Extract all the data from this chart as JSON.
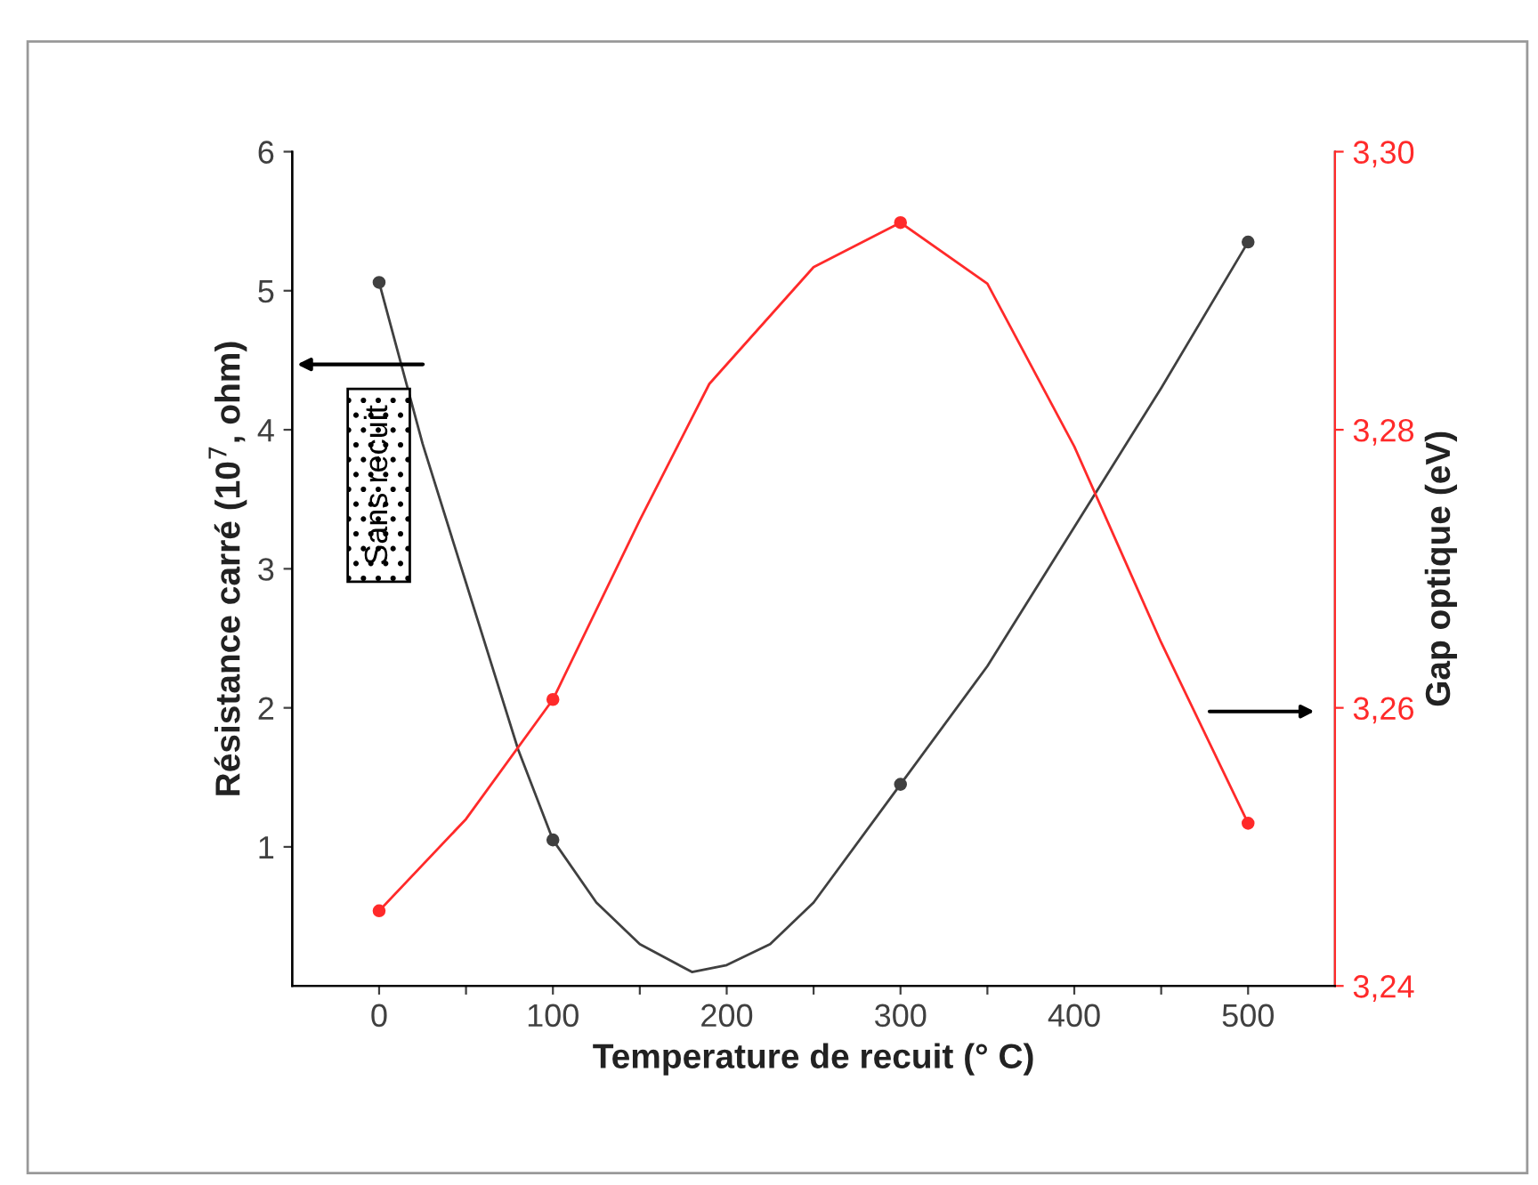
{
  "chart_data": {
    "type": "line",
    "xlabel": "Temperature de recuit (° C)",
    "ylabel": "Résistance carré (10$^{7}$, ohm)",
    "y2label": "Gap optique (eV)",
    "xlim": [
      -50,
      550
    ],
    "xticks": [
      0,
      {
        "value": 50,
        "label": null
      },
      100,
      {
        "value": 150,
        "label": null
      },
      200,
      {
        "value": 250,
        "label": null
      },
      300,
      {
        "value": 350,
        "label": null
      },
      400,
      {
        "value": 450,
        "label": null
      },
      500
    ],
    "ylim": [
      0,
      6
    ],
    "yticks": [
      1,
      2,
      3,
      4,
      5,
      6
    ],
    "y2lim": [
      3.24,
      3.3
    ],
    "y2ticks": [
      {
        "value": 3.24,
        "label": "3,24"
      },
      {
        "value": 3.26,
        "label": "3,26"
      },
      {
        "value": 3.28,
        "label": "3,28"
      },
      {
        "value": 3.3,
        "label": "3,30"
      }
    ],
    "grid": false,
    "legend": false,
    "annotations": [
      "Sans recuit"
    ],
    "series": [
      {
        "type": "scatter",
        "color": "#404040",
        "marker": "circle",
        "x": [
          0,
          100,
          300,
          500
        ],
        "values": [
          5.06,
          1.05,
          1.45,
          5.35
        ]
      },
      {
        "color": "#404040",
        "line_style": "solid",
        "marker": "none",
        "x": [
          0,
          25,
          50,
          80,
          100,
          125,
          150,
          180,
          200,
          225,
          250,
          300,
          350,
          400,
          450,
          500
        ],
        "values": [
          5.06,
          3.9,
          2.9,
          1.7,
          1.05,
          0.6,
          0.3,
          0.1,
          0.15,
          0.3,
          0.6,
          1.45,
          2.3,
          3.3,
          4.3,
          5.35
        ]
      },
      {
        "type": "scatter",
        "axis": "y2",
        "color": "#ff2a2a",
        "marker": "circle",
        "x": [
          0,
          100,
          300,
          500
        ],
        "values": [
          3.2454,
          3.2606,
          3.2949,
          3.2517
        ]
      },
      {
        "axis": "y2",
        "color": "#ff2a2a",
        "line_style": "solid",
        "marker": "none",
        "x": [
          0,
          50,
          100,
          150,
          190,
          250,
          300,
          350,
          400,
          450,
          500
        ],
        "values": [
          3.2454,
          3.252,
          3.2606,
          3.2735,
          3.2833,
          3.2917,
          3.2949,
          3.2905,
          3.2788,
          3.2647,
          3.2517
        ]
      }
    ]
  }
}
